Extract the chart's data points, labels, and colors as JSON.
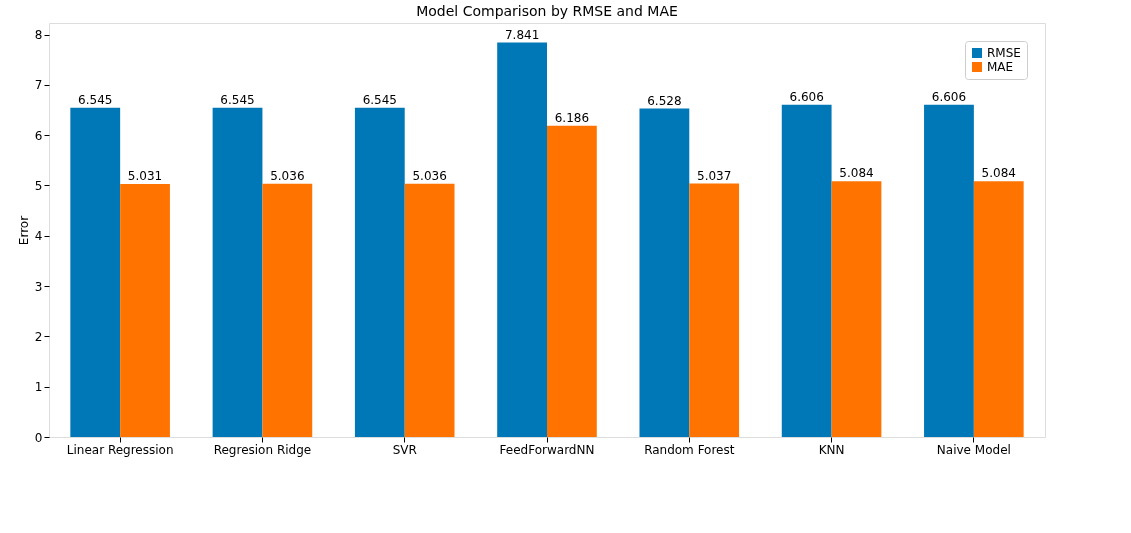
{
  "chart_data": {
    "type": "bar",
    "title": "Model Comparison by RMSE and MAE",
    "ylabel": "Error",
    "categories": [
      "Linear Regression",
      "Regresion Ridge",
      "SVR",
      "FeedForwardNN",
      "Random Forest",
      "KNN",
      "Naive Model"
    ],
    "series": [
      {
        "name": "RMSE",
        "color": "#0077b6",
        "values": [
          6.545,
          6.545,
          6.545,
          7.841,
          6.528,
          6.606,
          6.606
        ]
      },
      {
        "name": "MAE",
        "color": "#ff7400",
        "values": [
          5.031,
          5.036,
          5.036,
          6.186,
          5.037,
          5.084,
          5.084
        ]
      }
    ],
    "ylim": [
      0,
      8.23
    ],
    "yticks": [
      0,
      1,
      2,
      3,
      4,
      5,
      6,
      7,
      8
    ],
    "data_labels": true,
    "legend": "top right",
    "grid": false
  }
}
